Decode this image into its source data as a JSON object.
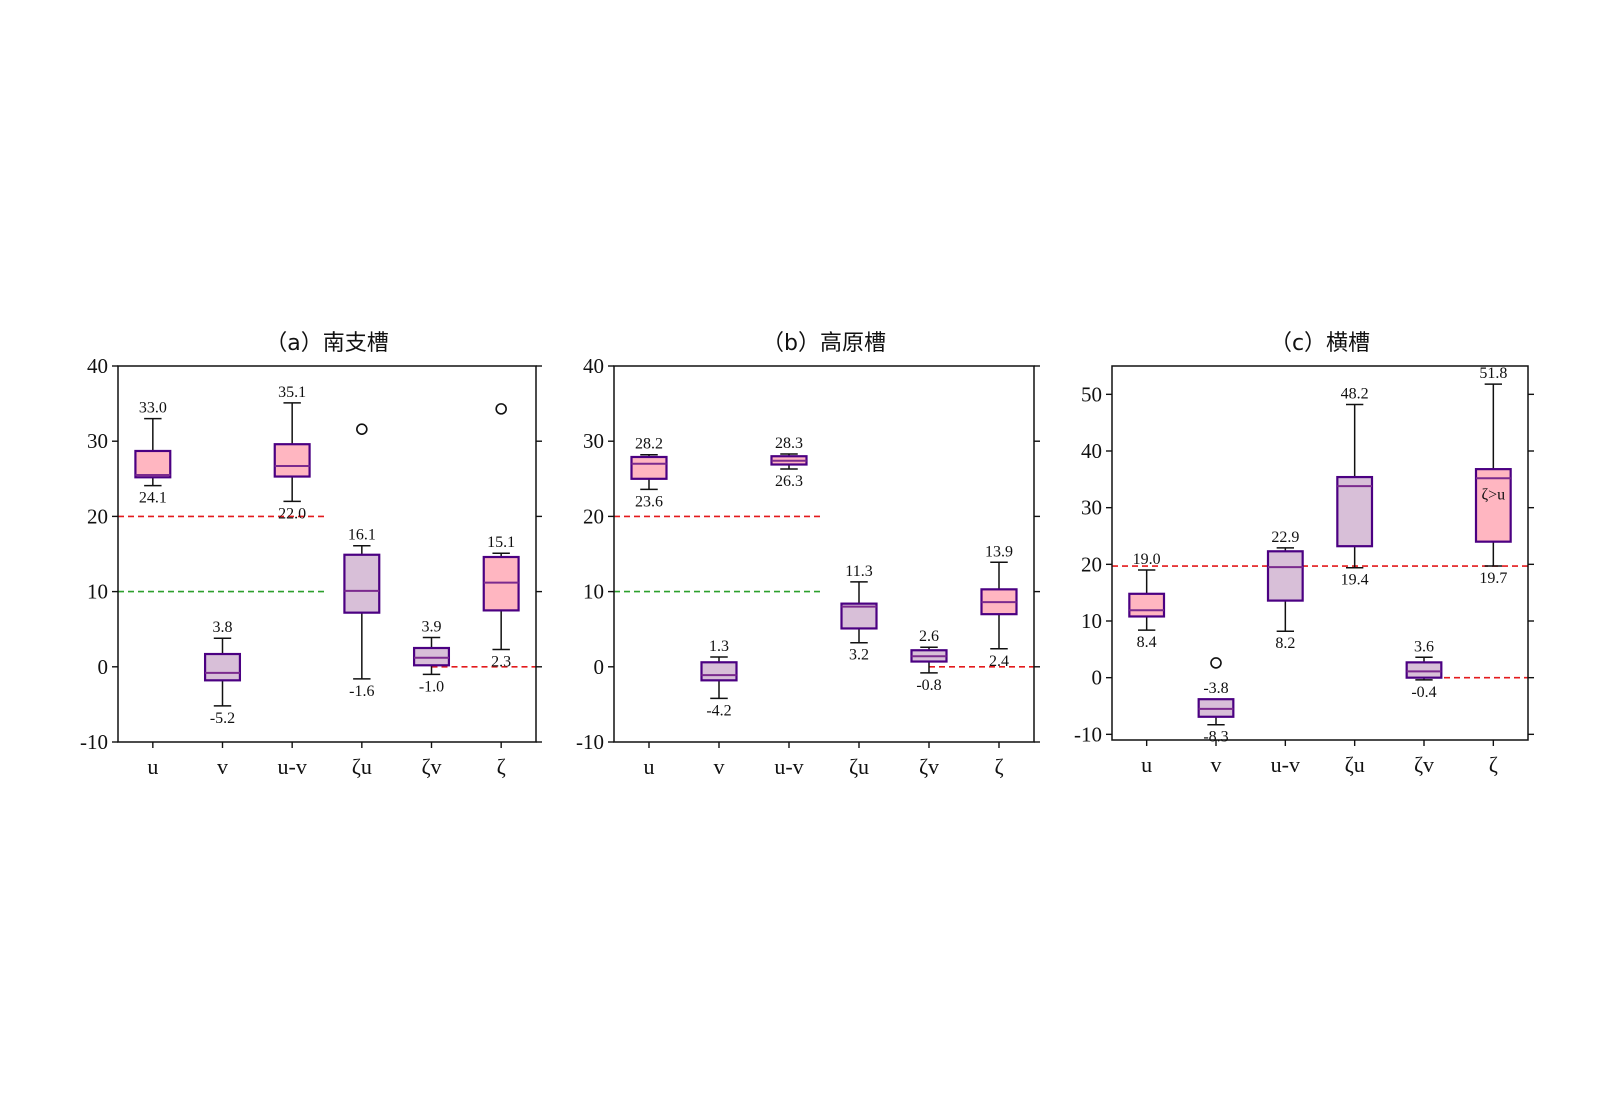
{
  "colors": {
    "pink_fill": "#ffb6c1",
    "purple_fill": "#d8bfd8",
    "box_edge": "#4b0082",
    "median": "#7b2a8e",
    "red_line": "#e31a1c",
    "green_line": "#2ca02c",
    "whisker": "#111111"
  },
  "chart_data": [
    {
      "type": "box",
      "title": "（a）南支槽",
      "categories": [
        "u",
        "v",
        "u-v",
        "ζu",
        "ζv",
        "ζ"
      ],
      "ylim": [
        -10,
        40
      ],
      "yticks": [
        -10,
        0,
        10,
        20,
        30,
        40
      ],
      "grid": false,
      "boxes": [
        {
          "cat": "u",
          "low": 24.1,
          "q1": 25.2,
          "median": 25.5,
          "q3": 28.7,
          "high": 33.0,
          "fill": "pink",
          "low_label": "24.1",
          "high_label": "33.0",
          "outliers": []
        },
        {
          "cat": "v",
          "low": -5.2,
          "q1": -1.8,
          "median": -0.8,
          "q3": 1.7,
          "high": 3.8,
          "fill": "purple",
          "low_label": "-5.2",
          "high_label": "3.8",
          "outliers": []
        },
        {
          "cat": "u-v",
          "low": 22.0,
          "q1": 25.3,
          "median": 26.7,
          "q3": 29.6,
          "high": 35.1,
          "fill": "pink",
          "low_label": "22.0",
          "high_label": "35.1",
          "outliers": []
        },
        {
          "cat": "ζu",
          "low": -1.6,
          "q1": 7.2,
          "median": 10.1,
          "q3": 14.9,
          "high": 16.1,
          "fill": "purple",
          "low_label": "-1.6",
          "high_label": "16.1",
          "outliers": [
            31.6
          ]
        },
        {
          "cat": "ζv",
          "low": -1.0,
          "q1": 0.2,
          "median": 1.2,
          "q3": 2.5,
          "high": 3.9,
          "fill": "purple",
          "low_label": "-1.0",
          "high_label": "3.9",
          "outliers": []
        },
        {
          "cat": "ζ",
          "low": 2.3,
          "q1": 7.5,
          "median": 11.2,
          "q3": 14.6,
          "high": 15.1,
          "fill": "pink",
          "low_label": "2.3",
          "high_label": "15.1",
          "outliers": [
            34.3
          ]
        }
      ],
      "reference_lines": [
        {
          "y": 20,
          "x_from": "u",
          "x_to": "u-v",
          "color": "red"
        },
        {
          "y": 10,
          "x_from": "u",
          "x_to": "u-v",
          "color": "green"
        },
        {
          "y": 0,
          "x_from": "ζv",
          "x_to": "ζ",
          "color": "red"
        }
      ]
    },
    {
      "type": "box",
      "title": "（b）高原槽",
      "categories": [
        "u",
        "v",
        "u-v",
        "ζu",
        "ζv",
        "ζ"
      ],
      "ylim": [
        -10,
        40
      ],
      "yticks": [
        -10,
        0,
        10,
        20,
        30,
        40
      ],
      "grid": false,
      "boxes": [
        {
          "cat": "u",
          "low": 23.6,
          "q1": 25.0,
          "median": 27.0,
          "q3": 27.9,
          "high": 28.2,
          "fill": "pink",
          "low_label": "23.6",
          "high_label": "28.2",
          "outliers": []
        },
        {
          "cat": "v",
          "low": -4.2,
          "q1": -1.8,
          "median": -1.1,
          "q3": 0.6,
          "high": 1.3,
          "fill": "purple",
          "low_label": "-4.2",
          "high_label": "1.3",
          "outliers": []
        },
        {
          "cat": "u-v",
          "low": 26.3,
          "q1": 26.9,
          "median": 27.4,
          "q3": 28.0,
          "high": 28.3,
          "fill": "pink",
          "low_label": "26.3",
          "high_label": "28.3",
          "outliers": []
        },
        {
          "cat": "ζu",
          "low": 3.2,
          "q1": 5.1,
          "median": 8.0,
          "q3": 8.4,
          "high": 11.3,
          "fill": "purple",
          "low_label": "3.2",
          "high_label": "11.3",
          "outliers": []
        },
        {
          "cat": "ζv",
          "low": -0.8,
          "q1": 0.7,
          "median": 1.4,
          "q3": 2.2,
          "high": 2.6,
          "fill": "purple",
          "low_label": "-0.8",
          "high_label": "2.6",
          "outliers": []
        },
        {
          "cat": "ζ",
          "low": 2.4,
          "q1": 7.0,
          "median": 8.6,
          "q3": 10.3,
          "high": 13.9,
          "fill": "pink",
          "low_label": "2.4",
          "high_label": "13.9",
          "outliers": []
        }
      ],
      "reference_lines": [
        {
          "y": 20,
          "x_from": "u",
          "x_to": "u-v",
          "color": "red"
        },
        {
          "y": 10,
          "x_from": "u",
          "x_to": "u-v",
          "color": "green"
        },
        {
          "y": 0,
          "x_from": "ζv",
          "x_to": "ζ",
          "color": "red"
        }
      ]
    },
    {
      "type": "box",
      "title": "（c）横槽",
      "categories": [
        "u",
        "v",
        "u-v",
        "ζu",
        "ζv",
        "ζ"
      ],
      "ylim": [
        -11,
        55
      ],
      "yticks": [
        -10,
        0,
        10,
        20,
        30,
        40,
        50
      ],
      "grid": false,
      "annotation": "ζ>u",
      "boxes": [
        {
          "cat": "u",
          "low": 8.4,
          "q1": 10.8,
          "median": 11.9,
          "q3": 14.8,
          "high": 19.0,
          "fill": "pink",
          "low_label": "8.4",
          "high_label": "19.0",
          "outliers": []
        },
        {
          "cat": "v",
          "low": -8.3,
          "q1": -6.9,
          "median": -5.5,
          "q3": -3.8,
          "high": -3.8,
          "fill": "purple",
          "low_label": "-8.3",
          "high_label": "-3.8",
          "outliers": [
            2.6
          ]
        },
        {
          "cat": "u-v",
          "low": 8.2,
          "q1": 13.6,
          "median": 19.5,
          "q3": 22.3,
          "high": 22.9,
          "fill": "purple",
          "low_label": "8.2",
          "high_label": "22.9",
          "outliers": []
        },
        {
          "cat": "ζu",
          "low": 19.4,
          "q1": 23.2,
          "median": 33.8,
          "q3": 35.4,
          "high": 48.2,
          "fill": "purple",
          "low_label": "19.4",
          "high_label": "48.2",
          "outliers": []
        },
        {
          "cat": "ζv",
          "low": -0.4,
          "q1": 0.0,
          "median": 1.1,
          "q3": 2.7,
          "high": 3.6,
          "fill": "purple",
          "low_label": "-0.4",
          "high_label": "3.6",
          "outliers": []
        },
        {
          "cat": "ζ",
          "low": 19.7,
          "q1": 24.0,
          "median": 35.2,
          "q3": 36.8,
          "high": 51.8,
          "fill": "pink",
          "low_label": "19.7",
          "high_label": "51.8",
          "outliers": []
        }
      ],
      "reference_lines": [
        {
          "y": 19.7,
          "x_from": "u",
          "x_to": "ζ",
          "color": "red"
        },
        {
          "y": 0,
          "x_from": "ζv",
          "x_to": "ζ",
          "color": "red"
        }
      ]
    }
  ]
}
